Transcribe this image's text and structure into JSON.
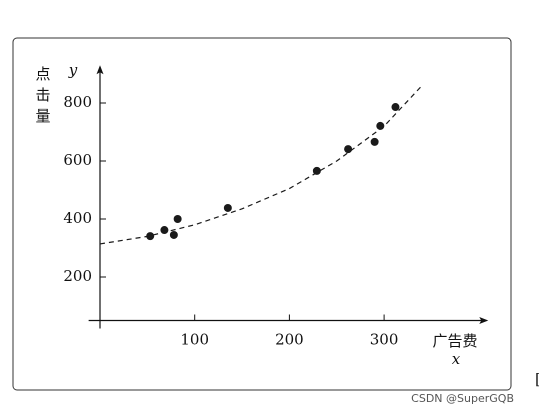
{
  "chart_data": {
    "type": "scatter",
    "y_label": "点击量",
    "y_symbol": "y",
    "x_label": "广告费",
    "x_symbol": "x",
    "x": [
      53,
      68,
      78,
      82,
      135,
      229,
      262,
      290,
      296,
      312
    ],
    "values": [
      341,
      362,
      345,
      400,
      438,
      566,
      641,
      666,
      721,
      786
    ],
    "color": "#1a1a1a",
    "curve": {
      "x": [
        0,
        50,
        100,
        150,
        200,
        250,
        300,
        340
      ],
      "values": [
        314,
        340,
        380,
        435,
        505,
        600,
        720,
        860
      ],
      "color": "#1a1a1a",
      "dashed": true
    },
    "xlim": [
      -12,
      410
    ],
    "ylim": [
      50,
      930
    ],
    "xticks": [
      100,
      200,
      300
    ],
    "yticks": [
      200,
      400,
      600,
      800
    ],
    "watermark": "CSDN @SuperGQB"
  }
}
